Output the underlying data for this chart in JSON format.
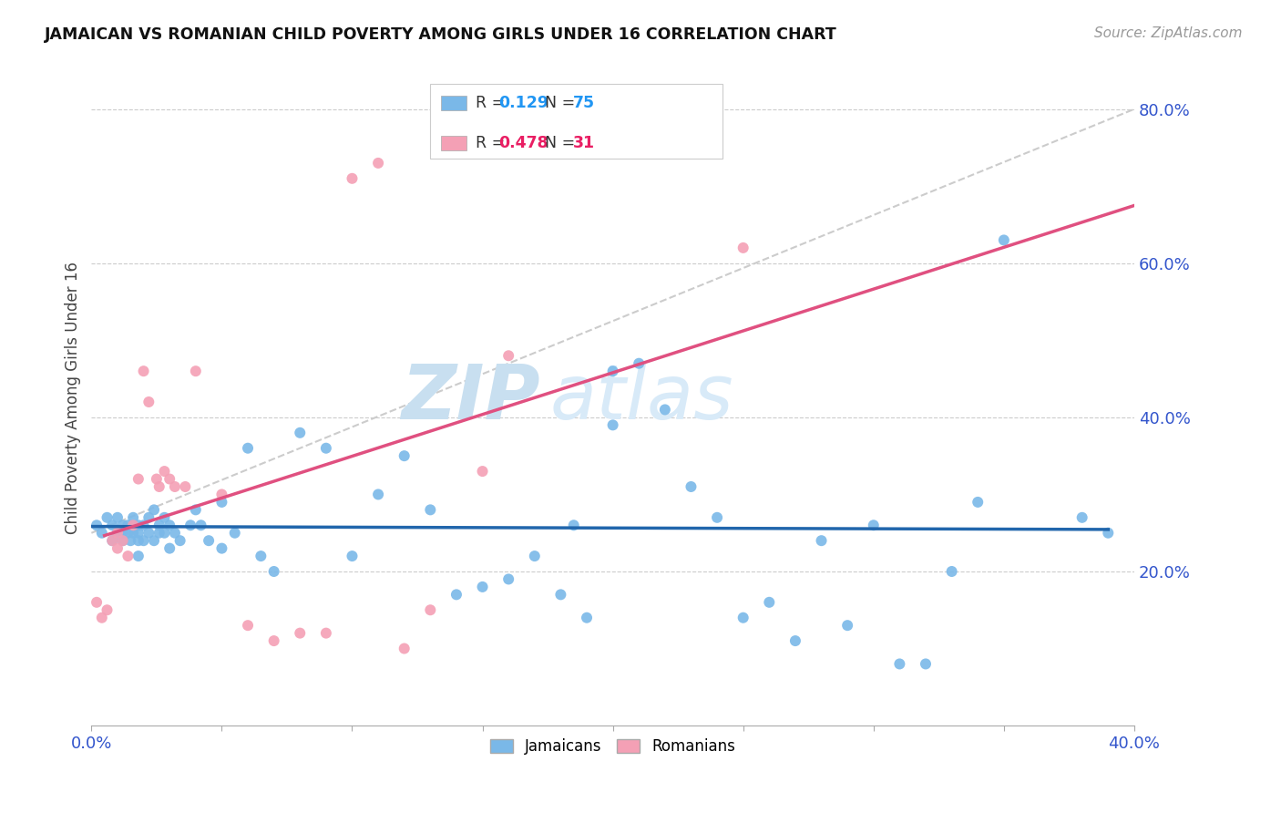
{
  "title": "JAMAICAN VS ROMANIAN CHILD POVERTY AMONG GIRLS UNDER 16 CORRELATION CHART",
  "source": "Source: ZipAtlas.com",
  "ylabel": "Child Poverty Among Girls Under 16",
  "xlim": [
    0.0,
    0.42
  ],
  "ylim": [
    -0.02,
    0.88
  ],
  "plot_xlim": [
    0.0,
    0.4
  ],
  "plot_ylim": [
    0.0,
    0.85
  ],
  "right_yticks": [
    0.2,
    0.4,
    0.6,
    0.8
  ],
  "xticks": [
    0.0,
    0.05,
    0.1,
    0.15,
    0.2,
    0.25,
    0.3,
    0.35,
    0.4
  ],
  "jamaicans_color": "#7ab8e8",
  "romanians_color": "#f4a0b5",
  "trendline_jamaicans_color": "#2166ac",
  "trendline_romanians_color": "#e05080",
  "ref_line_color": "#cccccc",
  "watermark_color": "#d6eaf8",
  "legend_r_jamaicans": "0.129",
  "legend_n_jamaicans": "75",
  "legend_r_romanians": "0.478",
  "legend_n_romanians": "31",
  "jamaicans_x": [
    0.002,
    0.004,
    0.006,
    0.008,
    0.008,
    0.01,
    0.01,
    0.012,
    0.012,
    0.012,
    0.014,
    0.014,
    0.015,
    0.016,
    0.016,
    0.018,
    0.018,
    0.018,
    0.018,
    0.02,
    0.02,
    0.022,
    0.022,
    0.024,
    0.024,
    0.026,
    0.026,
    0.028,
    0.028,
    0.03,
    0.03,
    0.032,
    0.034,
    0.038,
    0.04,
    0.042,
    0.045,
    0.05,
    0.05,
    0.055,
    0.06,
    0.065,
    0.07,
    0.08,
    0.09,
    0.1,
    0.11,
    0.12,
    0.13,
    0.14,
    0.15,
    0.16,
    0.17,
    0.18,
    0.185,
    0.19,
    0.2,
    0.2,
    0.21,
    0.22,
    0.23,
    0.24,
    0.25,
    0.26,
    0.27,
    0.28,
    0.29,
    0.3,
    0.31,
    0.32,
    0.33,
    0.34,
    0.35,
    0.38,
    0.39
  ],
  "jamaicans_y": [
    0.26,
    0.25,
    0.27,
    0.26,
    0.24,
    0.27,
    0.25,
    0.25,
    0.26,
    0.24,
    0.26,
    0.25,
    0.24,
    0.27,
    0.25,
    0.26,
    0.25,
    0.24,
    0.22,
    0.26,
    0.24,
    0.27,
    0.25,
    0.28,
    0.24,
    0.26,
    0.25,
    0.27,
    0.25,
    0.26,
    0.23,
    0.25,
    0.24,
    0.26,
    0.28,
    0.26,
    0.24,
    0.29,
    0.23,
    0.25,
    0.36,
    0.22,
    0.2,
    0.38,
    0.36,
    0.22,
    0.3,
    0.35,
    0.28,
    0.17,
    0.18,
    0.19,
    0.22,
    0.17,
    0.26,
    0.14,
    0.46,
    0.39,
    0.47,
    0.41,
    0.31,
    0.27,
    0.14,
    0.16,
    0.11,
    0.24,
    0.13,
    0.26,
    0.08,
    0.08,
    0.2,
    0.29,
    0.63,
    0.27,
    0.25
  ],
  "romanians_x": [
    0.002,
    0.004,
    0.006,
    0.008,
    0.01,
    0.01,
    0.012,
    0.014,
    0.016,
    0.018,
    0.02,
    0.022,
    0.025,
    0.026,
    0.028,
    0.03,
    0.032,
    0.036,
    0.04,
    0.05,
    0.06,
    0.07,
    0.08,
    0.09,
    0.1,
    0.11,
    0.12,
    0.13,
    0.15,
    0.16,
    0.25
  ],
  "romanians_y": [
    0.16,
    0.14,
    0.15,
    0.24,
    0.25,
    0.23,
    0.24,
    0.22,
    0.26,
    0.32,
    0.46,
    0.42,
    0.32,
    0.31,
    0.33,
    0.32,
    0.31,
    0.31,
    0.46,
    0.3,
    0.13,
    0.11,
    0.12,
    0.12,
    0.71,
    0.73,
    0.1,
    0.15,
    0.33,
    0.48,
    0.62
  ],
  "ref_line_x": [
    0.0,
    0.4
  ],
  "ref_line_y": [
    0.25,
    0.8
  ],
  "jamaicans_trend_x": [
    0.0,
    0.39
  ],
  "romanians_trend_x": [
    0.005,
    0.4
  ]
}
